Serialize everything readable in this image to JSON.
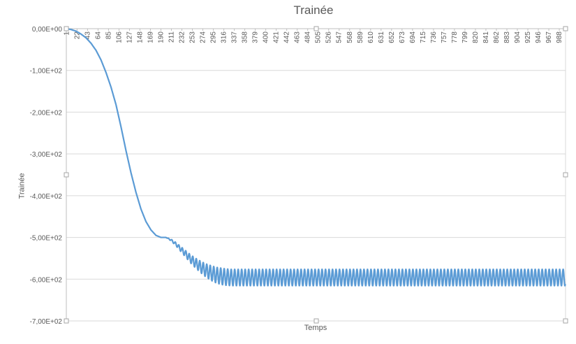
{
  "chart_data": {
    "type": "line",
    "title": "Trainée",
    "xlabel": "Temps",
    "ylabel": "Trainée",
    "ylim": [
      -700,
      0
    ],
    "y_tick_step": 100,
    "y_tick_labels": [
      "0,00E+00",
      "-1,00E+02",
      "-2,00E+02",
      "-3,00E+02",
      "-4,00E+02",
      "-5,00E+02",
      "-6,00E+02",
      "-7,00E+02"
    ],
    "x_category_count": 1000,
    "x_tick_labels": [
      "1",
      "22",
      "43",
      "64",
      "85",
      "106",
      "127",
      "148",
      "169",
      "190",
      "211",
      "232",
      "253",
      "274",
      "295",
      "316",
      "337",
      "358",
      "379",
      "400",
      "421",
      "442",
      "463",
      "484",
      "505",
      "526",
      "547",
      "568",
      "589",
      "610",
      "631",
      "652",
      "673",
      "694",
      "715",
      "736",
      "757",
      "778",
      "799",
      "820",
      "841",
      "862",
      "883",
      "904",
      "925",
      "946",
      "967",
      "988"
    ],
    "grid": "horizontal",
    "legend": "none",
    "series": [
      {
        "color": "#5b9bd5",
        "x": [
          1,
          10,
          20,
          30,
          40,
          50,
          60,
          70,
          80,
          90,
          100,
          110,
          120,
          130,
          140,
          150,
          160,
          170,
          180,
          190,
          200,
          210,
          220,
          230,
          240,
          250,
          260,
          270,
          280,
          290,
          300,
          310,
          320,
          330,
          340,
          350,
          400,
          500,
          600,
          700,
          800,
          900,
          1000
        ],
        "mean": [
          0,
          -2,
          -6,
          -13,
          -22,
          -35,
          -52,
          -75,
          -105,
          -140,
          -182,
          -235,
          -292,
          -345,
          -392,
          -432,
          -462,
          -482,
          -495,
          -500,
          -500,
          -506,
          -516,
          -528,
          -540,
          -552,
          -562,
          -571,
          -579,
          -585,
          -590,
          -593,
          -595,
          -596,
          -596,
          -596,
          -596,
          -596,
          -596,
          -596,
          -596,
          -596,
          -596
        ],
        "oscillation_amplitude": [
          0,
          0,
          0,
          0,
          0,
          0,
          0,
          0,
          0,
          0,
          0,
          0,
          0,
          0,
          0,
          0,
          0,
          0,
          0,
          0,
          0,
          2,
          4,
          6,
          8,
          10,
          12,
          14,
          16,
          18,
          19,
          20,
          20,
          20,
          20,
          20,
          20,
          20,
          20,
          20,
          20,
          20,
          20
        ],
        "oscillation_period": 7
      }
    ]
  }
}
